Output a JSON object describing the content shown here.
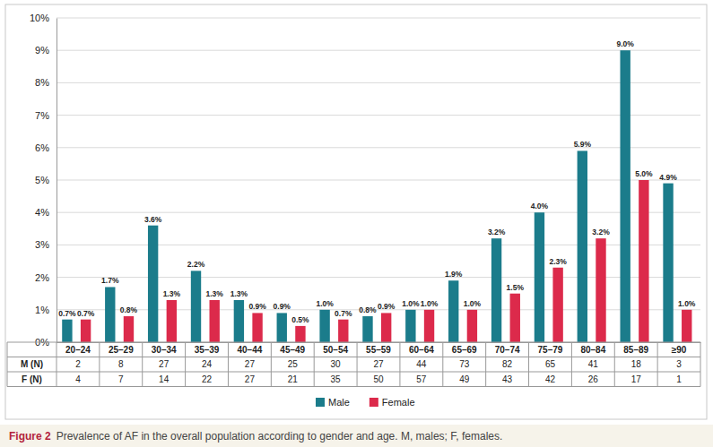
{
  "chart_data": {
    "type": "bar",
    "categories": [
      "20–24",
      "25–29",
      "30–34",
      "35–39",
      "40–44",
      "45–49",
      "50–54",
      "55–59",
      "60–64",
      "65–69",
      "70–74",
      "75–79",
      "80–84",
      "85–89",
      "≥90"
    ],
    "series": [
      {
        "name": "Male",
        "color": "#1b7c8b",
        "values": [
          0.7,
          1.7,
          3.6,
          2.2,
          1.3,
          0.9,
          1.0,
          0.8,
          1.0,
          1.9,
          3.2,
          4.0,
          5.9,
          9.0,
          4.9
        ],
        "value_labels": [
          "0.7%",
          "1.7%",
          "3.6%",
          "2.2%",
          "1.3%",
          "0.9%",
          "1.0%",
          "0.8%",
          "1.0%",
          "1.9%",
          "3.2%",
          "4.0%",
          "5.9%",
          "9.0%",
          "4.9%"
        ]
      },
      {
        "name": "Female",
        "color": "#dc2a4b",
        "values": [
          0.7,
          0.8,
          1.3,
          1.3,
          0.9,
          0.5,
          0.7,
          0.9,
          1.0,
          1.0,
          1.5,
          2.3,
          3.2,
          5.0,
          1.0
        ],
        "value_labels": [
          "0.7%",
          "0.8%",
          "1.3%",
          "1.3%",
          "0.9%",
          "0.5%",
          "0.7%",
          "0.9%",
          "1.0%",
          "1.0%",
          "1.5%",
          "2.3%",
          "3.2%",
          "5.0%",
          "1.0%"
        ]
      }
    ],
    "ylim": [
      0,
      10
    ],
    "yticks": [
      {
        "value": 0,
        "label": "0%"
      },
      {
        "value": 1,
        "label": "1%"
      },
      {
        "value": 2,
        "label": "2%"
      },
      {
        "value": 3,
        "label": "3%"
      },
      {
        "value": 4,
        "label": "4%"
      },
      {
        "value": 5,
        "label": "5%"
      },
      {
        "value": 6,
        "label": "6%"
      },
      {
        "value": 7,
        "label": "7%"
      },
      {
        "value": 8,
        "label": "8%"
      },
      {
        "value": 9,
        "label": "9%"
      },
      {
        "value": 10,
        "label": "10%"
      }
    ],
    "grid": true,
    "legend": "bottom",
    "data_labels": true
  },
  "table": {
    "rows": [
      {
        "label": "M (N)",
        "values": [
          2,
          8,
          27,
          24,
          27,
          25,
          30,
          27,
          44,
          73,
          82,
          65,
          41,
          18,
          3
        ]
      },
      {
        "label": "F (N)",
        "values": [
          4,
          7,
          14,
          22,
          27,
          21,
          35,
          50,
          57,
          49,
          43,
          42,
          26,
          17,
          1
        ]
      }
    ]
  },
  "caption": {
    "label": "Figure 2",
    "text": "Prevalence of AF in the overall population according to gender and age. M, males; F, females."
  }
}
